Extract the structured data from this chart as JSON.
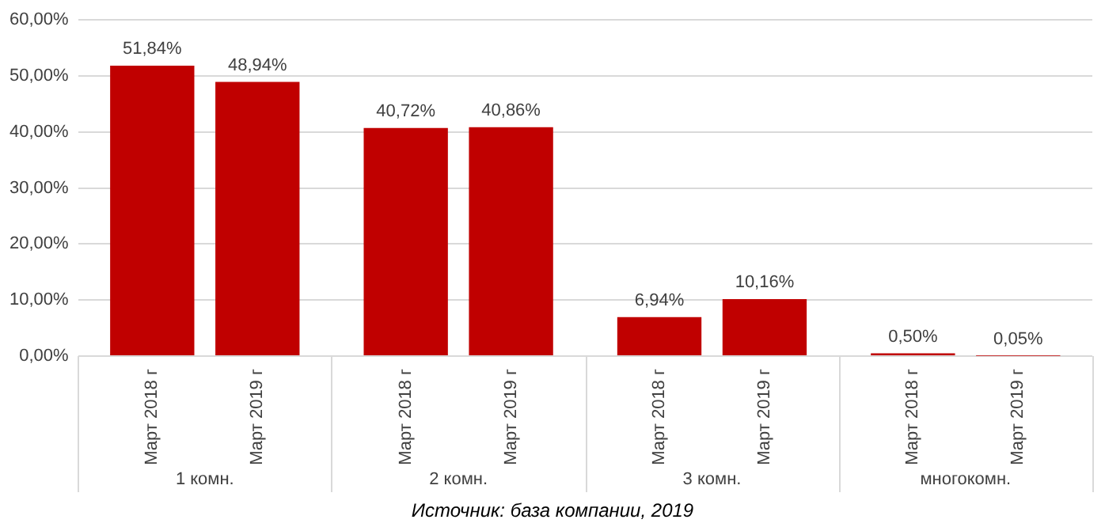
{
  "chart_data": {
    "type": "bar",
    "categories": [
      "1 комн.",
      "2 комн.",
      "3 комн.",
      "многокомн."
    ],
    "series": [
      {
        "name": "Март 2018 г",
        "color": "#c00000",
        "values": [
          51.84,
          40.72,
          6.94,
          0.5
        ],
        "value_labels": [
          "51,84%",
          "40,72%",
          "6,94%",
          "0,50%"
        ]
      },
      {
        "name": "Март 2019 г",
        "color": "#c00000",
        "values": [
          48.94,
          40.86,
          10.16,
          0.05
        ],
        "value_labels": [
          "48,94%",
          "40,86%",
          "10,16%",
          "0,05%"
        ]
      }
    ],
    "ylim": [
      0,
      60
    ],
    "yticks": [
      {
        "value": 0,
        "label": "0,00%"
      },
      {
        "value": 10,
        "label": "10,00%"
      },
      {
        "value": 20,
        "label": "20,00%"
      },
      {
        "value": 30,
        "label": "30,00%"
      },
      {
        "value": 40,
        "label": "40,00%"
      },
      {
        "value": 50,
        "label": "50,00%"
      },
      {
        "value": 60,
        "label": "60,00%"
      }
    ],
    "grid": "y",
    "legend": false,
    "annotations": [
      "Источник: база компании, 2019"
    ]
  }
}
